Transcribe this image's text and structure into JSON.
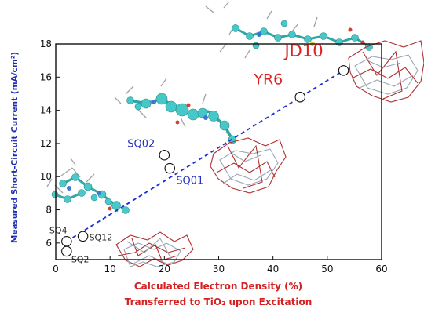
{
  "chart_data": {
    "type": "scatter",
    "xlabel_lines": [
      "Calculated Electron Density (%)",
      "Transferred to TiO₂ upon Excitation"
    ],
    "ylabel": "Measured Short-Circuit Current (mA/cm²)",
    "xlim": [
      0,
      60
    ],
    "ylim": [
      5,
      18
    ],
    "x_ticks": [
      0,
      10,
      20,
      30,
      40,
      50,
      60
    ],
    "y_ticks": [
      6,
      8,
      10,
      12,
      14,
      16,
      18
    ],
    "points": [
      {
        "label": "SQ2",
        "x": 2,
        "y": 5.5,
        "label_color": "#222222",
        "label_size": 11
      },
      {
        "label": "SQ4",
        "x": 2,
        "y": 6.1,
        "label_color": "#222222",
        "label_size": 11
      },
      {
        "label": "SQ12",
        "x": 5,
        "y": 6.4,
        "label_color": "#222222",
        "label_size": 11
      },
      {
        "label": "SQ01",
        "x": 21,
        "y": 10.5,
        "label_color": "#2030c0",
        "label_size": 13
      },
      {
        "label": "SQ02",
        "x": 20,
        "y": 11.3,
        "label_color": "#2030c0",
        "label_size": 13
      },
      {
        "label": "YR6",
        "x": 45,
        "y": 14.8,
        "label_color": "#e02020",
        "label_size": 19
      },
      {
        "label": "JD10",
        "x": 53,
        "y": 16.4,
        "label_color": "#e02020",
        "label_size": 21
      }
    ],
    "trendline": {
      "x": [
        2,
        53
      ],
      "y": [
        6.1,
        16.4
      ],
      "style": "dashed",
      "color": "#1a2ed6"
    },
    "grid": false
  }
}
